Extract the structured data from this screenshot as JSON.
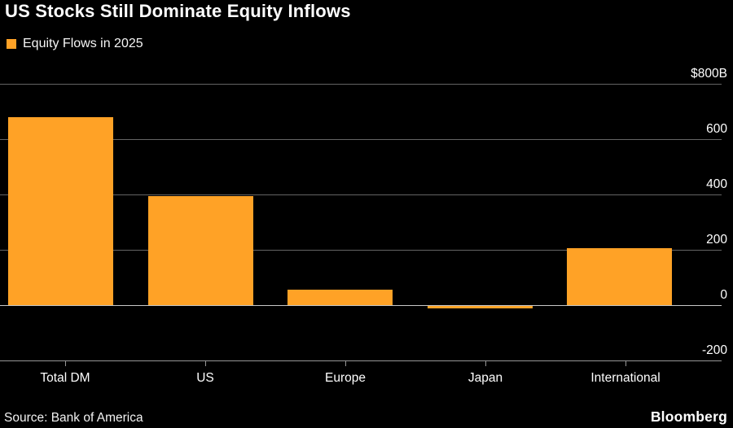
{
  "page": {
    "background_color": "#000000",
    "text_color": "#ffffff"
  },
  "chart_data": {
    "type": "bar",
    "title": "US Stocks Still Dominate Equity Inflows",
    "legend": "Equity Flows in 2025",
    "legend_position": "top-left",
    "categories": [
      "Total DM",
      "US",
      "Europe",
      "Japan",
      "International"
    ],
    "values": [
      680,
      395,
      55,
      -10,
      205
    ],
    "unit": "$B",
    "ylim": [
      -200,
      800
    ],
    "y_ticks": [
      {
        "value": 800,
        "label": "$800B"
      },
      {
        "value": 600,
        "label": "600"
      },
      {
        "value": 400,
        "label": "400"
      },
      {
        "value": 200,
        "label": "200"
      },
      {
        "value": 0,
        "label": "0"
      },
      {
        "value": -200,
        "label": "-200"
      }
    ],
    "grid": true,
    "bar_color": "#FFA226",
    "grid_color": "#646464",
    "zero_line_color": "#c8c8c8",
    "axis_color": "#969696",
    "source": "Source: Bank of America",
    "brand": "Bloomberg"
  }
}
